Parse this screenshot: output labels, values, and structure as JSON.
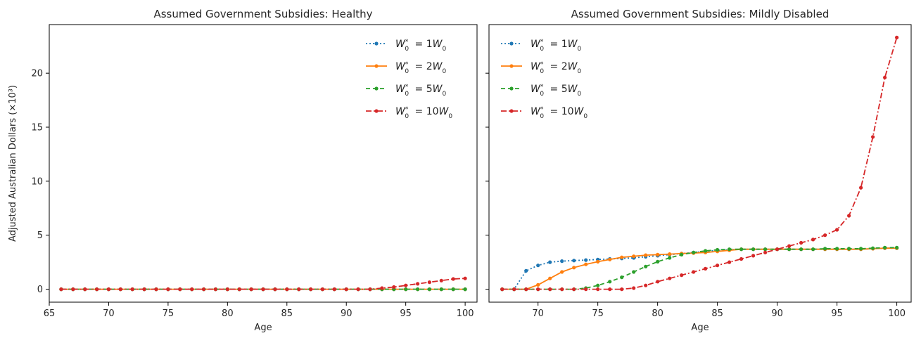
{
  "chart_data": [
    {
      "type": "line",
      "title": "Assumed Government Subsidies: Healthy",
      "xlabel": "Age",
      "ylabel": "Adjusted Australian Dollars (×10³)",
      "xlim": [
        65,
        101
      ],
      "ylim": [
        -1.2,
        24.5
      ],
      "xticks": [
        "65",
        "70",
        "75",
        "80",
        "85",
        "90",
        "95",
        "100"
      ],
      "yticks": [
        "0",
        "5",
        "10",
        "15",
        "20"
      ],
      "legend_position": "top-right",
      "x": [
        66,
        67,
        68,
        69,
        70,
        71,
        72,
        73,
        74,
        75,
        76,
        77,
        78,
        79,
        80,
        81,
        82,
        83,
        84,
        85,
        86,
        87,
        88,
        89,
        90,
        91,
        92,
        93,
        94,
        95,
        96,
        97,
        98,
        99,
        100
      ],
      "series": [
        {
          "name": "1",
          "color": "#1f77b4",
          "dash": "dotted",
          "values": [
            0,
            0,
            0,
            0,
            0,
            0,
            0,
            0,
            0,
            0,
            0,
            0,
            0,
            0,
            0,
            0,
            0,
            0,
            0,
            0,
            0,
            0,
            0,
            0,
            0,
            0,
            0,
            0,
            0,
            0,
            0,
            0,
            0,
            0,
            0
          ]
        },
        {
          "name": "2",
          "color": "#ff7f0e",
          "dash": "solid",
          "values": [
            0,
            0,
            0,
            0,
            0,
            0,
            0,
            0,
            0,
            0,
            0,
            0,
            0,
            0,
            0,
            0,
            0,
            0,
            0,
            0,
            0,
            0,
            0,
            0,
            0,
            0,
            0,
            0,
            0,
            0,
            0,
            0,
            0,
            0,
            0
          ]
        },
        {
          "name": "5",
          "color": "#2ca02c",
          "dash": "dashed",
          "values": [
            0,
            0,
            0,
            0,
            0,
            0,
            0,
            0,
            0,
            0,
            0,
            0,
            0,
            0,
            0,
            0,
            0,
            0,
            0,
            0,
            0,
            0,
            0,
            0,
            0,
            0,
            0,
            0,
            0,
            0,
            0,
            0,
            0,
            0,
            0
          ]
        },
        {
          "name": "10",
          "color": "#d62728",
          "dash": "dashdot",
          "values": [
            0,
            0,
            0,
            0,
            0,
            0,
            0,
            0,
            0,
            0,
            0,
            0,
            0,
            0,
            0,
            0,
            0,
            0,
            0,
            0,
            0,
            0,
            0,
            0,
            0,
            0,
            0,
            0.1,
            0.2,
            0.35,
            0.5,
            0.65,
            0.8,
            0.95,
            1.0
          ]
        }
      ]
    },
    {
      "type": "line",
      "title": "Assumed Government Subsidies: Mildly Disabled",
      "xlabel": "Age",
      "ylabel": "",
      "xlim": [
        65.9,
        101.2
      ],
      "ylim": [
        -1.2,
        24.5
      ],
      "xticks": [
        "70",
        "75",
        "80",
        "85",
        "90",
        "95",
        "100"
      ],
      "yticks": [],
      "legend_position": "top-left",
      "x": [
        67,
        68,
        69,
        70,
        71,
        72,
        73,
        74,
        75,
        76,
        77,
        78,
        79,
        80,
        81,
        82,
        83,
        84,
        85,
        86,
        87,
        88,
        89,
        90,
        91,
        92,
        93,
        94,
        95,
        96,
        97,
        98,
        99,
        100
      ],
      "series": [
        {
          "name": "1",
          "color": "#1f77b4",
          "dash": "dotted",
          "values": [
            0,
            0,
            1.7,
            2.2,
            2.5,
            2.6,
            2.65,
            2.7,
            2.75,
            2.8,
            2.85,
            2.9,
            3.0,
            3.1,
            3.2,
            3.3,
            3.4,
            3.5,
            3.6,
            3.65,
            3.7,
            3.7,
            3.7,
            3.7,
            3.7,
            3.7,
            3.7,
            3.7,
            3.7,
            3.7,
            3.7,
            3.75,
            3.8,
            3.8
          ]
        },
        {
          "name": "2",
          "color": "#ff7f0e",
          "dash": "solid",
          "values": [
            0,
            0,
            0,
            0.4,
            1.0,
            1.6,
            2.0,
            2.3,
            2.55,
            2.75,
            2.95,
            3.05,
            3.15,
            3.2,
            3.25,
            3.3,
            3.35,
            3.4,
            3.5,
            3.6,
            3.7,
            3.7,
            3.7,
            3.7,
            3.7,
            3.7,
            3.7,
            3.7,
            3.7,
            3.7,
            3.7,
            3.75,
            3.8,
            3.8
          ]
        },
        {
          "name": "5",
          "color": "#2ca02c",
          "dash": "dashed",
          "values": [
            0,
            0,
            0,
            0,
            0,
            0,
            0,
            0.1,
            0.35,
            0.7,
            1.1,
            1.6,
            2.1,
            2.55,
            2.9,
            3.2,
            3.4,
            3.55,
            3.65,
            3.7,
            3.7,
            3.7,
            3.7,
            3.7,
            3.7,
            3.7,
            3.7,
            3.75,
            3.75,
            3.75,
            3.75,
            3.8,
            3.85,
            3.85
          ]
        },
        {
          "name": "10",
          "color": "#d62728",
          "dash": "dashdot",
          "values": [
            0,
            0,
            0,
            0,
            0,
            0,
            0,
            0,
            0,
            0,
            0,
            0.1,
            0.35,
            0.7,
            1.0,
            1.3,
            1.6,
            1.9,
            2.2,
            2.5,
            2.8,
            3.1,
            3.4,
            3.7,
            4.0,
            4.3,
            4.6,
            5.0,
            5.5,
            6.8,
            9.4,
            14.1,
            19.6,
            23.3
          ]
        }
      ]
    }
  ]
}
